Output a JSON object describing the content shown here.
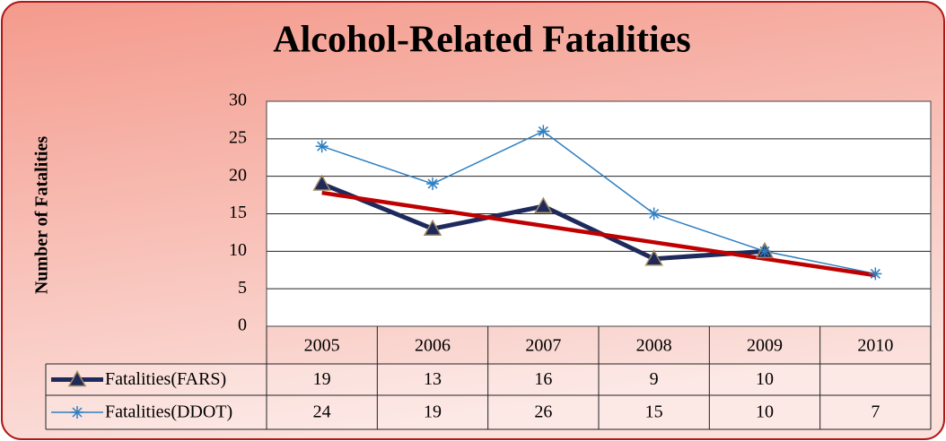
{
  "chart_data": {
    "type": "line",
    "title": "Alcohol-Related Fatalities",
    "y_label": "Number of Fatalities",
    "categories": [
      "2005",
      "2006",
      "2007",
      "2008",
      "2009",
      "2010"
    ],
    "series": [
      {
        "name": "Fatalities(FARS)",
        "color": "#1f2a5c",
        "marker": "triangle",
        "values": [
          19,
          13,
          16,
          9,
          10,
          null
        ]
      },
      {
        "name": "Fatalities(DDOT)",
        "color": "#2e7fc1",
        "marker": "asterisk",
        "values": [
          24,
          19,
          26,
          15,
          10,
          7
        ]
      }
    ],
    "trendline": {
      "color": "#c00000",
      "values": [
        17.8,
        15.6,
        13.4,
        11.2,
        9,
        6.8
      ]
    },
    "ylim": [
      0,
      30
    ],
    "yticks": [
      0,
      5,
      10,
      15,
      20,
      25,
      30
    ],
    "grid": true,
    "data_table": true
  }
}
